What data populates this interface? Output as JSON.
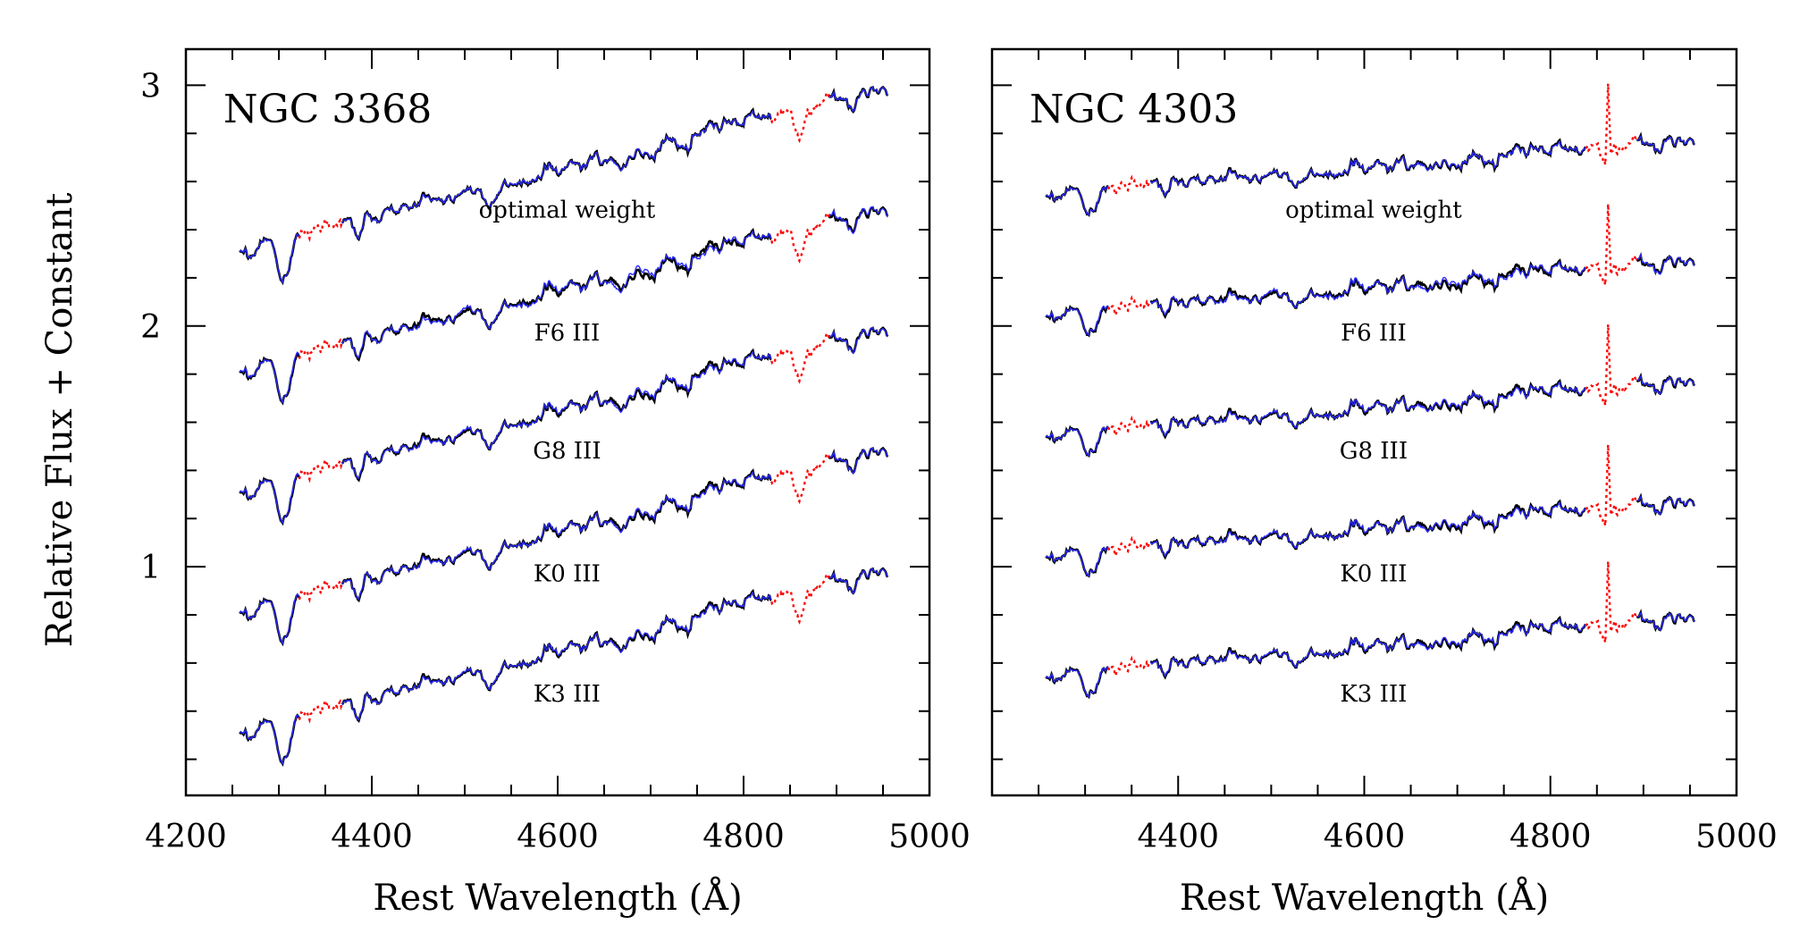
{
  "figure": {
    "ylabel": "Relative Flux + Constant",
    "colors": {
      "observed": "#000000",
      "model": "#2a2aff",
      "masked": "#ff0000"
    }
  },
  "chart_data": [
    {
      "type": "line",
      "title": "NGC 3368",
      "xlabel": "Rest Wavelength (Å)",
      "ylabel": "Relative Flux + Constant",
      "xlim": [
        4200,
        5000
      ],
      "ylim": [
        0.05,
        3.15
      ],
      "x_ticks": [
        4200,
        4400,
        4600,
        4800,
        5000
      ],
      "y_ticks": [
        1,
        2,
        3
      ],
      "x_range": [
        4258,
        4955
      ],
      "masked_ranges": [
        [
          4322,
          4368
        ],
        [
          4830,
          4892
        ]
      ],
      "series": [
        {
          "name": "optimal weight",
          "label_at": [
            4610,
            2.45
          ],
          "start": 2.32,
          "end": 3.0,
          "mismatch": 0.1
        },
        {
          "name": "F6 III",
          "label_at": [
            4610,
            1.94
          ],
          "start": 1.82,
          "end": 2.5,
          "mismatch": 1.0
        },
        {
          "name": "G8 III",
          "label_at": [
            4610,
            1.45
          ],
          "start": 1.32,
          "end": 2.0,
          "mismatch": 0.6
        },
        {
          "name": "K0 III",
          "label_at": [
            4610,
            0.94
          ],
          "start": 0.82,
          "end": 1.5,
          "mismatch": 0.5
        },
        {
          "name": "K3 III",
          "label_at": [
            4610,
            0.44
          ],
          "start": 0.32,
          "end": 1.0,
          "mismatch": 0.3
        }
      ]
    },
    {
      "type": "line",
      "title": "NGC 4303",
      "xlabel": "Rest Wavelength (Å)",
      "ylabel": "",
      "xlim": [
        4200,
        5000
      ],
      "ylim": [
        0.05,
        3.15
      ],
      "x_ticks": [
        4400,
        4600,
        4800,
        5000
      ],
      "y_ticks": [],
      "x_range": [
        4258,
        4955
      ],
      "masked_ranges": [
        [
          4325,
          4370
        ],
        [
          4838,
          4893
        ]
      ],
      "series": [
        {
          "name": "optimal weight",
          "label_at": [
            4610,
            2.45
          ],
          "start": 2.55,
          "end": 2.78,
          "mismatch": 0.1
        },
        {
          "name": "F6 III",
          "label_at": [
            4610,
            1.94
          ],
          "start": 2.05,
          "end": 2.28,
          "mismatch": 0.8
        },
        {
          "name": "G8 III",
          "label_at": [
            4610,
            1.45
          ],
          "start": 1.55,
          "end": 1.78,
          "mismatch": 0.4
        },
        {
          "name": "K0 III",
          "label_at": [
            4610,
            0.94
          ],
          "start": 1.05,
          "end": 1.28,
          "mismatch": 0.4
        },
        {
          "name": "K3 III",
          "label_at": [
            4610,
            0.44
          ],
          "start": 0.55,
          "end": 0.8,
          "mismatch": 0.3
        }
      ]
    }
  ]
}
